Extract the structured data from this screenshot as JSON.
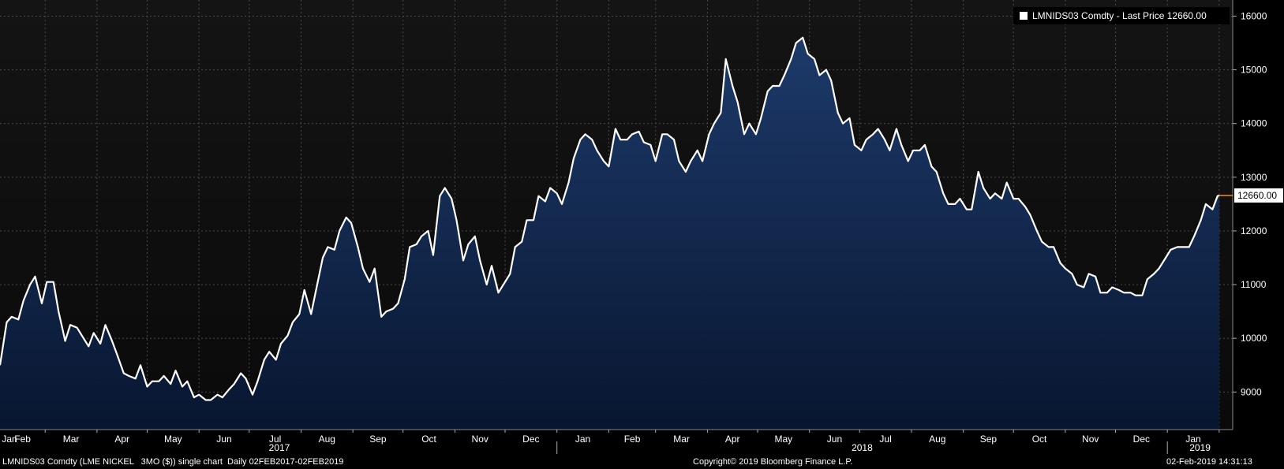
{
  "footer": {
    "left": "LMNIDS03 Comdty (LME NICKEL   3MO ($)) single chart  Daily 02FEB2017-02FEB2019",
    "copyright": "Copyright© 2019 Bloomberg Finance L.P.",
    "timestamp": "02-Feb-2019 14:31:13"
  },
  "colors": {
    "background": "#000000",
    "area_top": "#1a3560",
    "area_bottom": "#0b1a33",
    "line": "#ffffff",
    "grid": "#555555"
  },
  "chart_data": {
    "type": "area",
    "legend": "LMNIDS03 Comdty - Last Price 12660.00",
    "last_value_label": "12660.00",
    "y_ticks": [
      9000,
      10000,
      11000,
      12000,
      13000,
      14000,
      15000,
      16000
    ],
    "ylim": [
      8300,
      16300
    ],
    "x_month_labels": [
      "Jan",
      "Feb",
      "Mar",
      "Apr",
      "May",
      "Jun",
      "Jul",
      "Aug",
      "Sep",
      "Oct",
      "Nov",
      "Dec",
      "Jan",
      "Feb",
      "Mar",
      "Apr",
      "May",
      "Jun",
      "Jul",
      "Aug",
      "Sep",
      "Oct",
      "Nov",
      "Dec",
      "Jan"
    ],
    "x_year_labels": [
      "2017",
      "2018",
      "2019"
    ],
    "grid": true,
    "legend_position": "top-right",
    "series": [
      {
        "name": "LMNIDS03 Comdty - Last Price",
        "points": [
          [
            "2017-02-02",
            9500
          ],
          [
            "2017-02-06",
            10300
          ],
          [
            "2017-02-09",
            10400
          ],
          [
            "2017-02-13",
            10350
          ],
          [
            "2017-02-16",
            10700
          ],
          [
            "2017-02-20",
            11000
          ],
          [
            "2017-02-23",
            11150
          ],
          [
            "2017-02-27",
            10650
          ],
          [
            "2017-03-02",
            11050
          ],
          [
            "2017-03-06",
            11050
          ],
          [
            "2017-03-09",
            10500
          ],
          [
            "2017-03-13",
            9950
          ],
          [
            "2017-03-16",
            10250
          ],
          [
            "2017-03-20",
            10200
          ],
          [
            "2017-03-23",
            10050
          ],
          [
            "2017-03-27",
            9850
          ],
          [
            "2017-03-30",
            10100
          ],
          [
            "2017-04-03",
            9900
          ],
          [
            "2017-04-06",
            10250
          ],
          [
            "2017-04-10",
            9950
          ],
          [
            "2017-04-13",
            9700
          ],
          [
            "2017-04-17",
            9350
          ],
          [
            "2017-04-20",
            9300
          ],
          [
            "2017-04-24",
            9250
          ],
          [
            "2017-04-27",
            9500
          ],
          [
            "2017-05-01",
            9100
          ],
          [
            "2017-05-04",
            9200
          ],
          [
            "2017-05-08",
            9200
          ],
          [
            "2017-05-11",
            9300
          ],
          [
            "2017-05-15",
            9150
          ],
          [
            "2017-05-18",
            9400
          ],
          [
            "2017-05-22",
            9100
          ],
          [
            "2017-05-25",
            9200
          ],
          [
            "2017-05-29",
            8900
          ],
          [
            "2017-06-01",
            8950
          ],
          [
            "2017-06-05",
            8850
          ],
          [
            "2017-06-08",
            8850
          ],
          [
            "2017-06-12",
            8950
          ],
          [
            "2017-06-15",
            8900
          ],
          [
            "2017-06-19",
            9050
          ],
          [
            "2017-06-22",
            9150
          ],
          [
            "2017-06-26",
            9350
          ],
          [
            "2017-06-29",
            9250
          ],
          [
            "2017-07-03",
            8950
          ],
          [
            "2017-07-06",
            9200
          ],
          [
            "2017-07-10",
            9600
          ],
          [
            "2017-07-13",
            9750
          ],
          [
            "2017-07-17",
            9600
          ],
          [
            "2017-07-20",
            9900
          ],
          [
            "2017-07-24",
            10050
          ],
          [
            "2017-07-27",
            10300
          ],
          [
            "2017-07-31",
            10450
          ],
          [
            "2017-08-03",
            10900
          ],
          [
            "2017-08-07",
            10450
          ],
          [
            "2017-08-10",
            10900
          ],
          [
            "2017-08-14",
            11500
          ],
          [
            "2017-08-17",
            11700
          ],
          [
            "2017-08-21",
            11650
          ],
          [
            "2017-08-24",
            12000
          ],
          [
            "2017-08-28",
            12250
          ],
          [
            "2017-08-31",
            12150
          ],
          [
            "2017-09-04",
            11700
          ],
          [
            "2017-09-07",
            11300
          ],
          [
            "2017-09-11",
            11050
          ],
          [
            "2017-09-14",
            11300
          ],
          [
            "2017-09-18",
            10400
          ],
          [
            "2017-09-21",
            10500
          ],
          [
            "2017-09-25",
            10550
          ],
          [
            "2017-09-28",
            10650
          ],
          [
            "2017-10-02",
            11100
          ],
          [
            "2017-10-05",
            11700
          ],
          [
            "2017-10-09",
            11750
          ],
          [
            "2017-10-12",
            11900
          ],
          [
            "2017-10-16",
            12000
          ],
          [
            "2017-10-19",
            11550
          ],
          [
            "2017-10-23",
            12650
          ],
          [
            "2017-10-26",
            12800
          ],
          [
            "2017-10-30",
            12600
          ],
          [
            "2017-11-02",
            12200
          ],
          [
            "2017-11-06",
            11450
          ],
          [
            "2017-11-09",
            11750
          ],
          [
            "2017-11-13",
            11900
          ],
          [
            "2017-11-16",
            11450
          ],
          [
            "2017-11-20",
            11000
          ],
          [
            "2017-11-23",
            11350
          ],
          [
            "2017-11-27",
            10850
          ],
          [
            "2017-11-30",
            11000
          ],
          [
            "2017-12-04",
            11200
          ],
          [
            "2017-12-07",
            11700
          ],
          [
            "2017-12-11",
            11800
          ],
          [
            "2017-12-14",
            12200
          ],
          [
            "2017-12-18",
            12200
          ],
          [
            "2017-12-21",
            12650
          ],
          [
            "2017-12-25",
            12550
          ],
          [
            "2017-12-28",
            12800
          ],
          [
            "2018-01-01",
            12700
          ],
          [
            "2018-01-04",
            12500
          ],
          [
            "2018-01-08",
            12900
          ],
          [
            "2018-01-11",
            13350
          ],
          [
            "2018-01-15",
            13700
          ],
          [
            "2018-01-18",
            13800
          ],
          [
            "2018-01-22",
            13700
          ],
          [
            "2018-01-25",
            13500
          ],
          [
            "2018-01-29",
            13300
          ],
          [
            "2018-02-01",
            13200
          ],
          [
            "2018-02-05",
            13900
          ],
          [
            "2018-02-08",
            13700
          ],
          [
            "2018-02-12",
            13700
          ],
          [
            "2018-02-15",
            13800
          ],
          [
            "2018-02-19",
            13850
          ],
          [
            "2018-02-22",
            13650
          ],
          [
            "2018-02-26",
            13600
          ],
          [
            "2018-03-01",
            13300
          ],
          [
            "2018-03-05",
            13800
          ],
          [
            "2018-03-08",
            13800
          ],
          [
            "2018-03-12",
            13700
          ],
          [
            "2018-03-15",
            13300
          ],
          [
            "2018-03-19",
            13100
          ],
          [
            "2018-03-22",
            13300
          ],
          [
            "2018-03-26",
            13500
          ],
          [
            "2018-03-29",
            13300
          ],
          [
            "2018-04-02",
            13800
          ],
          [
            "2018-04-05",
            14000
          ],
          [
            "2018-04-09",
            14200
          ],
          [
            "2018-04-12",
            15200
          ],
          [
            "2018-04-16",
            14700
          ],
          [
            "2018-04-19",
            14400
          ],
          [
            "2018-04-23",
            13800
          ],
          [
            "2018-04-26",
            14000
          ],
          [
            "2018-04-30",
            13800
          ],
          [
            "2018-05-03",
            14100
          ],
          [
            "2018-05-07",
            14600
          ],
          [
            "2018-05-10",
            14700
          ],
          [
            "2018-05-14",
            14700
          ],
          [
            "2018-05-17",
            14900
          ],
          [
            "2018-05-21",
            15200
          ],
          [
            "2018-05-24",
            15500
          ],
          [
            "2018-05-28",
            15600
          ],
          [
            "2018-05-31",
            15300
          ],
          [
            "2018-06-04",
            15200
          ],
          [
            "2018-06-07",
            14900
          ],
          [
            "2018-06-11",
            15000
          ],
          [
            "2018-06-14",
            14800
          ],
          [
            "2018-06-18",
            14200
          ],
          [
            "2018-06-21",
            14000
          ],
          [
            "2018-06-25",
            14100
          ],
          [
            "2018-06-28",
            13600
          ],
          [
            "2018-07-02",
            13500
          ],
          [
            "2018-07-05",
            13700
          ],
          [
            "2018-07-09",
            13800
          ],
          [
            "2018-07-12",
            13900
          ],
          [
            "2018-07-16",
            13700
          ],
          [
            "2018-07-19",
            13500
          ],
          [
            "2018-07-23",
            13900
          ],
          [
            "2018-07-26",
            13600
          ],
          [
            "2018-07-30",
            13300
          ],
          [
            "2018-08-02",
            13500
          ],
          [
            "2018-08-06",
            13500
          ],
          [
            "2018-08-09",
            13600
          ],
          [
            "2018-08-13",
            13200
          ],
          [
            "2018-08-16",
            13100
          ],
          [
            "2018-08-20",
            12700
          ],
          [
            "2018-08-23",
            12500
          ],
          [
            "2018-08-27",
            12500
          ],
          [
            "2018-08-30",
            12600
          ],
          [
            "2018-09-03",
            12400
          ],
          [
            "2018-09-06",
            12400
          ],
          [
            "2018-09-10",
            13100
          ],
          [
            "2018-09-13",
            12800
          ],
          [
            "2018-09-17",
            12600
          ],
          [
            "2018-09-20",
            12700
          ],
          [
            "2018-09-24",
            12600
          ],
          [
            "2018-09-27",
            12900
          ],
          [
            "2018-10-01",
            12600
          ],
          [
            "2018-10-04",
            12600
          ],
          [
            "2018-10-08",
            12450
          ],
          [
            "2018-10-11",
            12300
          ],
          [
            "2018-10-15",
            12000
          ],
          [
            "2018-10-18",
            11800
          ],
          [
            "2018-10-22",
            11700
          ],
          [
            "2018-10-25",
            11700
          ],
          [
            "2018-10-29",
            11400
          ],
          [
            "2018-11-01",
            11300
          ],
          [
            "2018-11-05",
            11200
          ],
          [
            "2018-11-08",
            11000
          ],
          [
            "2018-11-12",
            10950
          ],
          [
            "2018-11-15",
            11200
          ],
          [
            "2018-11-19",
            11150
          ],
          [
            "2018-11-22",
            10850
          ],
          [
            "2018-11-26",
            10850
          ],
          [
            "2018-11-29",
            10950
          ],
          [
            "2018-12-03",
            10900
          ],
          [
            "2018-12-06",
            10850
          ],
          [
            "2018-12-10",
            10850
          ],
          [
            "2018-12-13",
            10800
          ],
          [
            "2018-12-17",
            10800
          ],
          [
            "2018-12-20",
            11100
          ],
          [
            "2018-12-24",
            11200
          ],
          [
            "2018-12-27",
            11300
          ],
          [
            "2018-12-31",
            11500
          ],
          [
            "2019-01-03",
            11650
          ],
          [
            "2019-01-07",
            11700
          ],
          [
            "2019-01-10",
            11700
          ],
          [
            "2019-01-14",
            11700
          ],
          [
            "2019-01-17",
            11900
          ],
          [
            "2019-01-21",
            12200
          ],
          [
            "2019-01-24",
            12500
          ],
          [
            "2019-01-28",
            12400
          ],
          [
            "2019-01-31",
            12650
          ],
          [
            "2019-02-01",
            12660
          ]
        ]
      }
    ]
  }
}
